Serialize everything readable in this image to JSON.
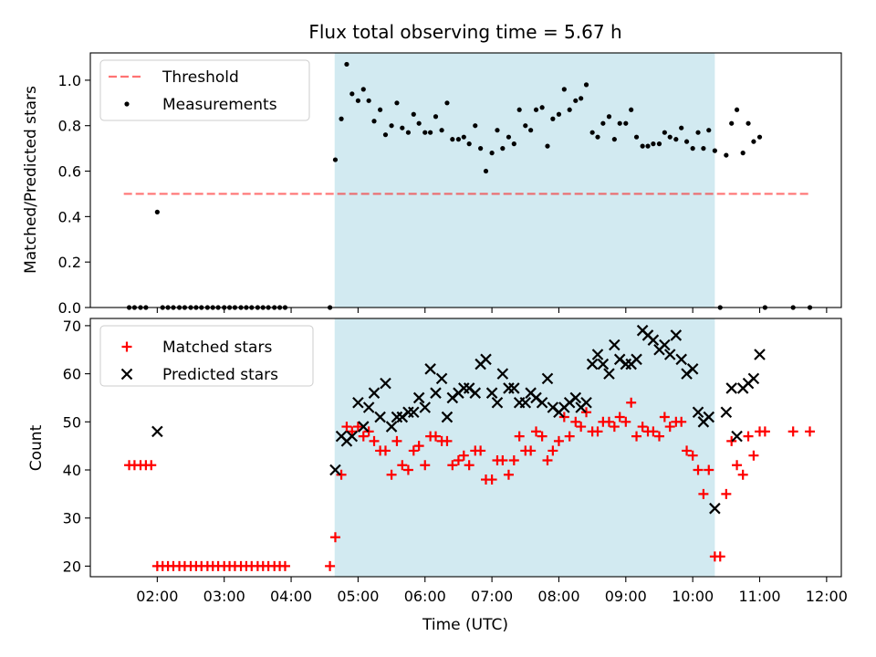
{
  "figure": {
    "title": "Flux total observing time = 5.67 h",
    "xlabel": "Time (UTC)",
    "x_ticks": [
      "02:00",
      "03:00",
      "04:00",
      "05:00",
      "06:00",
      "07:00",
      "08:00",
      "09:00",
      "10:00",
      "11:00",
      "12:00"
    ],
    "x_range_hours": [
      1.0,
      12.22
    ],
    "shaded_region_hours": [
      4.65,
      10.33
    ],
    "colors": {
      "shade": "#add8e6",
      "threshold": "#ff0000",
      "measurement": "#000000",
      "matched": "#ff0000",
      "predicted": "#000000"
    }
  },
  "chart_data": [
    {
      "type": "scatter",
      "ylabel": "Matched/Predicted stars",
      "ylim": [
        0,
        1.12
      ],
      "y_ticks": [
        "0.0",
        "0.2",
        "0.4",
        "0.6",
        "0.8",
        "1.0"
      ],
      "legend": {
        "placement": "upper-left",
        "threshold_label": "Threshold",
        "measurements_label": "Measurements"
      },
      "threshold": {
        "value": 0.5,
        "x_start": 1.5,
        "x_end": 11.75
      },
      "measurements": [
        [
          1.58,
          0
        ],
        [
          1.66,
          0
        ],
        [
          1.75,
          0
        ],
        [
          1.83,
          0
        ],
        [
          2.0,
          0.42
        ],
        [
          2.08,
          0
        ],
        [
          2.16,
          0
        ],
        [
          2.24,
          0
        ],
        [
          2.33,
          0
        ],
        [
          2.41,
          0
        ],
        [
          2.5,
          0
        ],
        [
          2.58,
          0
        ],
        [
          2.66,
          0
        ],
        [
          2.75,
          0
        ],
        [
          2.83,
          0
        ],
        [
          2.91,
          0
        ],
        [
          3.0,
          0
        ],
        [
          3.08,
          0
        ],
        [
          3.16,
          0
        ],
        [
          3.25,
          0
        ],
        [
          3.33,
          0
        ],
        [
          3.41,
          0
        ],
        [
          3.5,
          0
        ],
        [
          3.58,
          0
        ],
        [
          3.66,
          0
        ],
        [
          3.75,
          0
        ],
        [
          3.83,
          0
        ],
        [
          3.91,
          0
        ],
        [
          4.58,
          0
        ],
        [
          4.66,
          0.65
        ],
        [
          4.75,
          0.83
        ],
        [
          4.83,
          1.07
        ],
        [
          4.91,
          0.94
        ],
        [
          5.0,
          0.91
        ],
        [
          5.08,
          0.96
        ],
        [
          5.16,
          0.91
        ],
        [
          5.24,
          0.82
        ],
        [
          5.33,
          0.87
        ],
        [
          5.41,
          0.76
        ],
        [
          5.5,
          0.8
        ],
        [
          5.58,
          0.9
        ],
        [
          5.66,
          0.79
        ],
        [
          5.75,
          0.77
        ],
        [
          5.83,
          0.85
        ],
        [
          5.91,
          0.81
        ],
        [
          6.0,
          0.77
        ],
        [
          6.08,
          0.77
        ],
        [
          6.16,
          0.84
        ],
        [
          6.25,
          0.78
        ],
        [
          6.33,
          0.9
        ],
        [
          6.41,
          0.74
        ],
        [
          6.5,
          0.74
        ],
        [
          6.58,
          0.75
        ],
        [
          6.66,
          0.72
        ],
        [
          6.75,
          0.8
        ],
        [
          6.83,
          0.7
        ],
        [
          6.91,
          0.6
        ],
        [
          7.0,
          0.68
        ],
        [
          7.08,
          0.78
        ],
        [
          7.16,
          0.7
        ],
        [
          7.25,
          0.75
        ],
        [
          7.33,
          0.72
        ],
        [
          7.41,
          0.87
        ],
        [
          7.5,
          0.8
        ],
        [
          7.58,
          0.78
        ],
        [
          7.66,
          0.87
        ],
        [
          7.75,
          0.88
        ],
        [
          7.83,
          0.71
        ],
        [
          7.91,
          0.83
        ],
        [
          8.0,
          0.85
        ],
        [
          8.08,
          0.96
        ],
        [
          8.16,
          0.87
        ],
        [
          8.25,
          0.91
        ],
        [
          8.33,
          0.92
        ],
        [
          8.41,
          0.98
        ],
        [
          8.5,
          0.77
        ],
        [
          8.58,
          0.75
        ],
        [
          8.66,
          0.81
        ],
        [
          8.75,
          0.84
        ],
        [
          8.83,
          0.74
        ],
        [
          8.91,
          0.81
        ],
        [
          9.0,
          0.81
        ],
        [
          9.08,
          0.87
        ],
        [
          9.16,
          0.75
        ],
        [
          9.25,
          0.71
        ],
        [
          9.33,
          0.71
        ],
        [
          9.41,
          0.72
        ],
        [
          9.5,
          0.72
        ],
        [
          9.58,
          0.77
        ],
        [
          9.66,
          0.75
        ],
        [
          9.75,
          0.74
        ],
        [
          9.83,
          0.79
        ],
        [
          9.91,
          0.73
        ],
        [
          10.0,
          0.7
        ],
        [
          10.08,
          0.77
        ],
        [
          10.16,
          0.7
        ],
        [
          10.24,
          0.78
        ],
        [
          10.33,
          0.69
        ],
        [
          10.41,
          0
        ],
        [
          10.5,
          0.67
        ],
        [
          10.58,
          0.81
        ],
        [
          10.66,
          0.87
        ],
        [
          10.75,
          0.68
        ],
        [
          10.83,
          0.81
        ],
        [
          10.91,
          0.73
        ],
        [
          11.0,
          0.75
        ],
        [
          11.08,
          0
        ],
        [
          11.5,
          0
        ],
        [
          11.75,
          0
        ]
      ]
    },
    {
      "type": "scatter",
      "ylabel": "Count",
      "ylim": [
        17.8,
        71.5
      ],
      "y_ticks": [
        "20",
        "30",
        "40",
        "50",
        "60",
        "70"
      ],
      "legend": {
        "placement": "upper-left",
        "matched_label": "Matched stars",
        "predicted_label": "Predicted stars"
      },
      "series": [
        {
          "name": "Matched stars",
          "marker": "plus",
          "points": [
            [
              1.58,
              41
            ],
            [
              1.66,
              41
            ],
            [
              1.75,
              41
            ],
            [
              1.83,
              41
            ],
            [
              1.91,
              41
            ],
            [
              2.0,
              20
            ],
            [
              2.08,
              20
            ],
            [
              2.16,
              20
            ],
            [
              2.24,
              20
            ],
            [
              2.33,
              20
            ],
            [
              2.41,
              20
            ],
            [
              2.5,
              20
            ],
            [
              2.58,
              20
            ],
            [
              2.66,
              20
            ],
            [
              2.75,
              20
            ],
            [
              2.83,
              20
            ],
            [
              2.91,
              20
            ],
            [
              3.0,
              20
            ],
            [
              3.08,
              20
            ],
            [
              3.16,
              20
            ],
            [
              3.25,
              20
            ],
            [
              3.33,
              20
            ],
            [
              3.41,
              20
            ],
            [
              3.5,
              20
            ],
            [
              3.58,
              20
            ],
            [
              3.66,
              20
            ],
            [
              3.75,
              20
            ],
            [
              3.83,
              20
            ],
            [
              3.91,
              20
            ],
            [
              4.58,
              20
            ],
            [
              4.66,
              26
            ],
            [
              4.75,
              39
            ],
            [
              4.83,
              49
            ],
            [
              4.91,
              48
            ],
            [
              5.0,
              49
            ],
            [
              5.08,
              47
            ],
            [
              5.16,
              48
            ],
            [
              5.24,
              46
            ],
            [
              5.33,
              44
            ],
            [
              5.41,
              44
            ],
            [
              5.5,
              39
            ],
            [
              5.58,
              46
            ],
            [
              5.66,
              41
            ],
            [
              5.75,
              40
            ],
            [
              5.83,
              44
            ],
            [
              5.91,
              45
            ],
            [
              6.0,
              41
            ],
            [
              6.08,
              47
            ],
            [
              6.16,
              47
            ],
            [
              6.25,
              46
            ],
            [
              6.33,
              46
            ],
            [
              6.41,
              41
            ],
            [
              6.5,
              42
            ],
            [
              6.58,
              43
            ],
            [
              6.66,
              41
            ],
            [
              6.75,
              44
            ],
            [
              6.83,
              44
            ],
            [
              6.91,
              38
            ],
            [
              7.0,
              38
            ],
            [
              7.08,
              42
            ],
            [
              7.16,
              42
            ],
            [
              7.25,
              39
            ],
            [
              7.33,
              42
            ],
            [
              7.41,
              47
            ],
            [
              7.5,
              44
            ],
            [
              7.58,
              44
            ],
            [
              7.66,
              48
            ],
            [
              7.75,
              47
            ],
            [
              7.83,
              42
            ],
            [
              7.91,
              44
            ],
            [
              8.0,
              46
            ],
            [
              8.08,
              51
            ],
            [
              8.16,
              47
            ],
            [
              8.25,
              50
            ],
            [
              8.33,
              49
            ],
            [
              8.41,
              52
            ],
            [
              8.5,
              48
            ],
            [
              8.58,
              48
            ],
            [
              8.66,
              50
            ],
            [
              8.75,
              50
            ],
            [
              8.83,
              49
            ],
            [
              8.91,
              51
            ],
            [
              9.0,
              50
            ],
            [
              9.08,
              54
            ],
            [
              9.16,
              47
            ],
            [
              9.25,
              49
            ],
            [
              9.33,
              48
            ],
            [
              9.41,
              48
            ],
            [
              9.5,
              47
            ],
            [
              9.58,
              51
            ],
            [
              9.66,
              49
            ],
            [
              9.75,
              50
            ],
            [
              9.83,
              50
            ],
            [
              9.91,
              44
            ],
            [
              10.0,
              43
            ],
            [
              10.08,
              40
            ],
            [
              10.16,
              35
            ],
            [
              10.24,
              40
            ],
            [
              10.33,
              22
            ],
            [
              10.41,
              22
            ],
            [
              10.5,
              35
            ],
            [
              10.58,
              46
            ],
            [
              10.66,
              41
            ],
            [
              10.75,
              39
            ],
            [
              10.83,
              47
            ],
            [
              10.91,
              43
            ],
            [
              11.0,
              48
            ],
            [
              11.08,
              48
            ],
            [
              11.5,
              48
            ],
            [
              11.75,
              48
            ]
          ]
        },
        {
          "name": "Predicted stars",
          "marker": "x",
          "points": [
            [
              2.0,
              48
            ],
            [
              4.66,
              40
            ],
            [
              4.75,
              47
            ],
            [
              4.83,
              46
            ],
            [
              4.91,
              47
            ],
            [
              5.0,
              54
            ],
            [
              5.08,
              49
            ],
            [
              5.16,
              53
            ],
            [
              5.24,
              56
            ],
            [
              5.33,
              51
            ],
            [
              5.41,
              58
            ],
            [
              5.5,
              49
            ],
            [
              5.58,
              51
            ],
            [
              5.66,
              51
            ],
            [
              5.75,
              52
            ],
            [
              5.83,
              52
            ],
            [
              5.91,
              55
            ],
            [
              6.0,
              53
            ],
            [
              6.08,
              61
            ],
            [
              6.16,
              56
            ],
            [
              6.25,
              59
            ],
            [
              6.33,
              51
            ],
            [
              6.41,
              55
            ],
            [
              6.5,
              56
            ],
            [
              6.58,
              57
            ],
            [
              6.66,
              57
            ],
            [
              6.75,
              56
            ],
            [
              6.83,
              62
            ],
            [
              6.91,
              63
            ],
            [
              7.0,
              56
            ],
            [
              7.08,
              54
            ],
            [
              7.16,
              60
            ],
            [
              7.25,
              57
            ],
            [
              7.33,
              57
            ],
            [
              7.41,
              54
            ],
            [
              7.5,
              54
            ],
            [
              7.58,
              56
            ],
            [
              7.66,
              55
            ],
            [
              7.75,
              54
            ],
            [
              7.83,
              59
            ],
            [
              7.91,
              53
            ],
            [
              8.0,
              52
            ],
            [
              8.08,
              53
            ],
            [
              8.16,
              54
            ],
            [
              8.25,
              55
            ],
            [
              8.33,
              53
            ],
            [
              8.41,
              54
            ],
            [
              8.5,
              62
            ],
            [
              8.58,
              64
            ],
            [
              8.66,
              62
            ],
            [
              8.75,
              60
            ],
            [
              8.83,
              66
            ],
            [
              8.91,
              63
            ],
            [
              9.0,
              62
            ],
            [
              9.08,
              62
            ],
            [
              9.16,
              63
            ],
            [
              9.25,
              69
            ],
            [
              9.33,
              68
            ],
            [
              9.41,
              67
            ],
            [
              9.5,
              65
            ],
            [
              9.58,
              66
            ],
            [
              9.66,
              64
            ],
            [
              9.75,
              68
            ],
            [
              9.83,
              63
            ],
            [
              9.91,
              60
            ],
            [
              10.0,
              61
            ],
            [
              10.08,
              52
            ],
            [
              10.16,
              50
            ],
            [
              10.24,
              51
            ],
            [
              10.33,
              32
            ],
            [
              10.5,
              52
            ],
            [
              10.58,
              57
            ],
            [
              10.66,
              47
            ],
            [
              10.75,
              57
            ],
            [
              10.83,
              58
            ],
            [
              10.91,
              59
            ],
            [
              11.0,
              64
            ]
          ]
        }
      ]
    }
  ]
}
